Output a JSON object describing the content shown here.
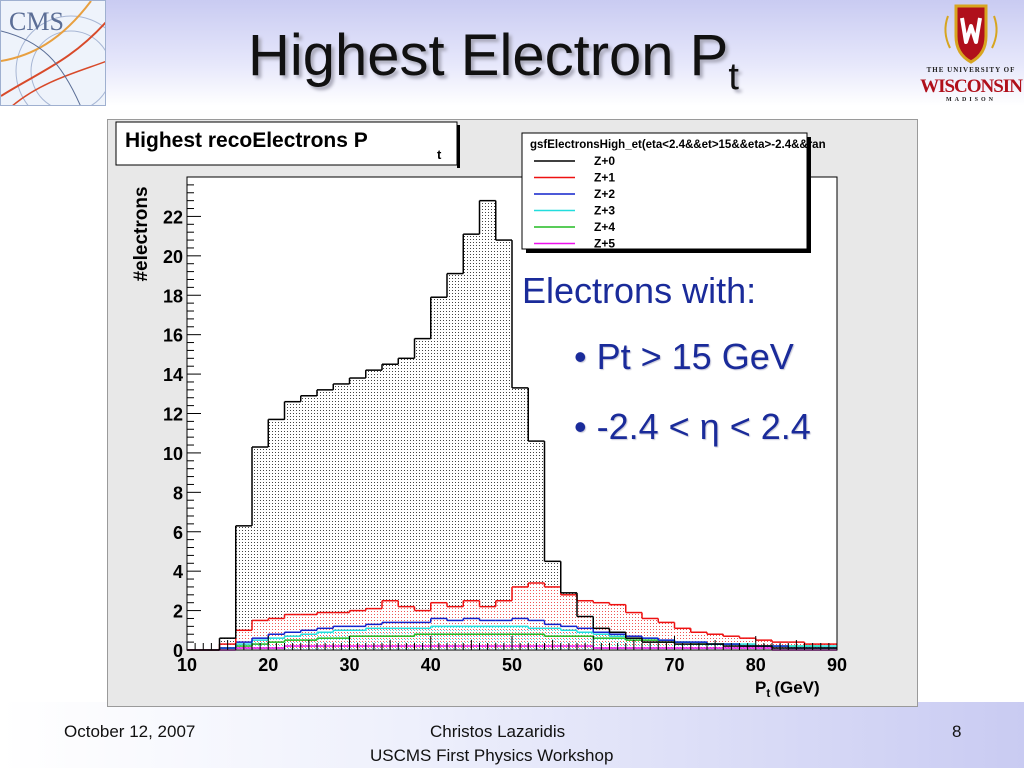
{
  "slide": {
    "title_main": "Highest Electron P",
    "title_sub": "t",
    "cms_logo_text": "CMS",
    "uw_logo": {
      "line1": "THE UNIVERSITY OF",
      "line2": "WISCONSIN",
      "line3": "MADISON"
    },
    "bullets": {
      "heading": "Electrons with:",
      "items": [
        "• Pt > 15 GeV",
        "• -2.4 < η < 2.4"
      ]
    },
    "footer": {
      "date": "October 12, 2007",
      "author": "Christos Lazaridis",
      "event": "USCMS First Physics Workshop",
      "page": "8"
    }
  },
  "chart_data": {
    "type": "histogram",
    "title": "Highest recoElectrons P",
    "title_sub": "t",
    "xlabel": "P",
    "xlabel_sub": "t",
    "xlabel_unit": "(GeV)",
    "ylabel": "#electrons",
    "xlim": [
      10,
      90
    ],
    "ylim": [
      0,
      24
    ],
    "x_ticks": [
      10,
      20,
      30,
      40,
      50,
      60,
      70,
      80,
      90
    ],
    "y_ticks": [
      0,
      2,
      4,
      6,
      8,
      10,
      12,
      14,
      16,
      18,
      20,
      22
    ],
    "bin_edges": [
      10,
      12,
      14,
      16,
      18,
      20,
      22,
      24,
      26,
      28,
      30,
      32,
      34,
      36,
      38,
      40,
      42,
      44,
      46,
      48,
      50,
      52,
      54,
      56,
      58,
      60,
      62,
      64,
      66,
      68,
      70,
      72,
      74,
      76,
      78,
      80,
      82,
      84,
      86,
      88,
      90
    ],
    "legend_title": "gsfElectronsHigh_et(eta<2.4&&et>15&&eta>-2.4&&ran",
    "legend_position": "top-right",
    "series": [
      {
        "name": "Z+0",
        "color": "#000000",
        "values": [
          0,
          0,
          0.6,
          6.3,
          10.3,
          11.7,
          12.6,
          12.9,
          13.2,
          13.5,
          13.8,
          14.2,
          14.5,
          14.8,
          15.8,
          17.9,
          19.1,
          21.1,
          22.8,
          20.8,
          13.3,
          10.6,
          4.5,
          2.9,
          1.7,
          1.1,
          0.9,
          0.6,
          0.4,
          0.4,
          0.3,
          0.3,
          0.3,
          0.2,
          0.2,
          0.2,
          0.1,
          0.1,
          0.1,
          0.1
        ]
      },
      {
        "name": "Z+1",
        "color": "#ee1111",
        "values": [
          0,
          0,
          0.3,
          1.0,
          1.5,
          1.6,
          1.8,
          1.8,
          1.9,
          1.9,
          2.0,
          2.1,
          2.5,
          2.2,
          2.0,
          2.4,
          2.2,
          2.5,
          2.2,
          2.5,
          3.2,
          3.4,
          3.2,
          2.8,
          2.5,
          2.4,
          2.3,
          1.9,
          1.6,
          1.4,
          1.1,
          0.9,
          0.8,
          0.7,
          0.6,
          0.5,
          0.4,
          0.4,
          0.3,
          0.3
        ]
      },
      {
        "name": "Z+2",
        "color": "#1122cc",
        "values": [
          0,
          0,
          0.1,
          0.4,
          0.6,
          0.8,
          0.9,
          1.0,
          1.1,
          1.2,
          1.2,
          1.3,
          1.4,
          1.4,
          1.4,
          1.6,
          1.5,
          1.6,
          1.5,
          1.5,
          1.6,
          1.5,
          1.3,
          1.2,
          1.1,
          0.9,
          0.8,
          0.7,
          0.6,
          0.5,
          0.4,
          0.4,
          0.3,
          0.3,
          0.2,
          0.2,
          0.2,
          0.1,
          0.1,
          0.1
        ]
      },
      {
        "name": "Z+3",
        "color": "#22dddd",
        "values": [
          0,
          0,
          0.1,
          0.3,
          0.5,
          0.6,
          0.7,
          0.8,
          0.9,
          1.0,
          1.0,
          1.1,
          1.1,
          1.1,
          1.1,
          1.2,
          1.2,
          1.2,
          1.2,
          1.2,
          1.2,
          1.1,
          1.1,
          1.0,
          0.9,
          0.8,
          0.7,
          0.6,
          0.6,
          0.5,
          0.4,
          0.4,
          0.3,
          0.3,
          0.3,
          0.2,
          0.2,
          0.2,
          0.2,
          0.2
        ]
      },
      {
        "name": "Z+4",
        "color": "#22bb22",
        "values": [
          0,
          0,
          0.1,
          0.2,
          0.3,
          0.4,
          0.5,
          0.5,
          0.6,
          0.6,
          0.7,
          0.7,
          0.7,
          0.7,
          0.8,
          0.8,
          0.8,
          0.8,
          0.8,
          0.8,
          0.8,
          0.8,
          0.7,
          0.7,
          0.7,
          0.6,
          0.6,
          0.5,
          0.5,
          0.4,
          0.4,
          0.3,
          0.3,
          0.3,
          0.2,
          0.2,
          0.2,
          0.2,
          0.2,
          0.1
        ]
      },
      {
        "name": "Z+5",
        "color": "#ee11ee",
        "values": [
          0,
          0,
          0,
          0.1,
          0.1,
          0.1,
          0.2,
          0.2,
          0.2,
          0.2,
          0.2,
          0.2,
          0.2,
          0.2,
          0.2,
          0.2,
          0.2,
          0.2,
          0.2,
          0.2,
          0.2,
          0.2,
          0.2,
          0.2,
          0.2,
          0.1,
          0.1,
          0.1,
          0.1,
          0.1,
          0.1,
          0.1,
          0.1,
          0.1,
          0.1,
          0.1,
          0,
          0,
          0,
          0
        ]
      }
    ]
  }
}
